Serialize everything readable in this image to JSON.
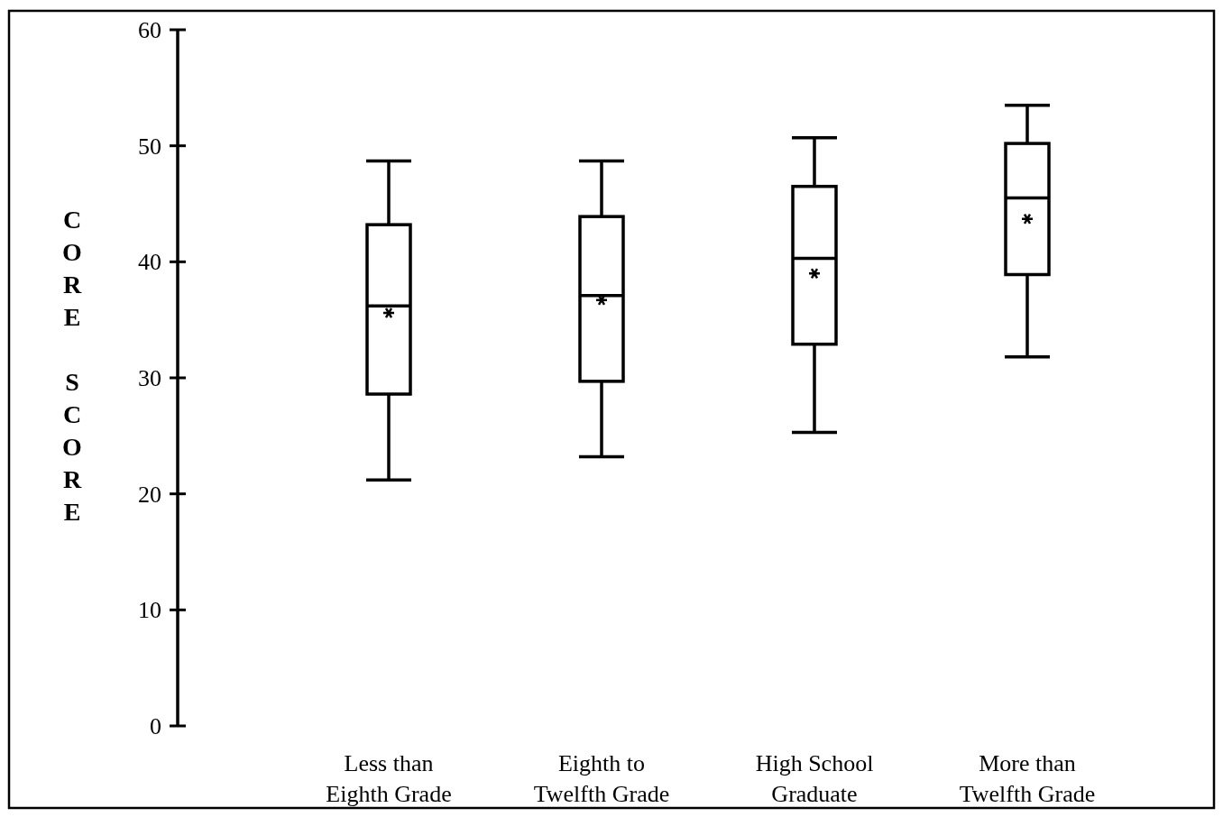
{
  "chart_data": {
    "type": "box",
    "ylabel": "CORE SCORE",
    "categories": [
      "Less than Eighth Grade",
      "Eighth to Twelfth Grade",
      "High School Graduate",
      "More than Twelfth Grade"
    ],
    "boxes": [
      {
        "low": 21.2,
        "q1": 28.6,
        "median": 36.2,
        "q3": 43.2,
        "high": 48.7,
        "mean": 35.6
      },
      {
        "low": 23.2,
        "q1": 29.7,
        "median": 37.1,
        "q3": 43.9,
        "high": 48.7,
        "mean": 36.7
      },
      {
        "low": 25.3,
        "q1": 32.9,
        "median": 40.3,
        "q3": 46.5,
        "high": 50.7,
        "mean": 39.0
      },
      {
        "low": 31.8,
        "q1": 38.9,
        "median": 45.5,
        "q3": 50.2,
        "high": 53.5,
        "mean": 43.7
      }
    ],
    "ylim": [
      0,
      60
    ],
    "yticks": [
      0,
      10,
      20,
      30,
      40,
      50,
      60
    ]
  }
}
